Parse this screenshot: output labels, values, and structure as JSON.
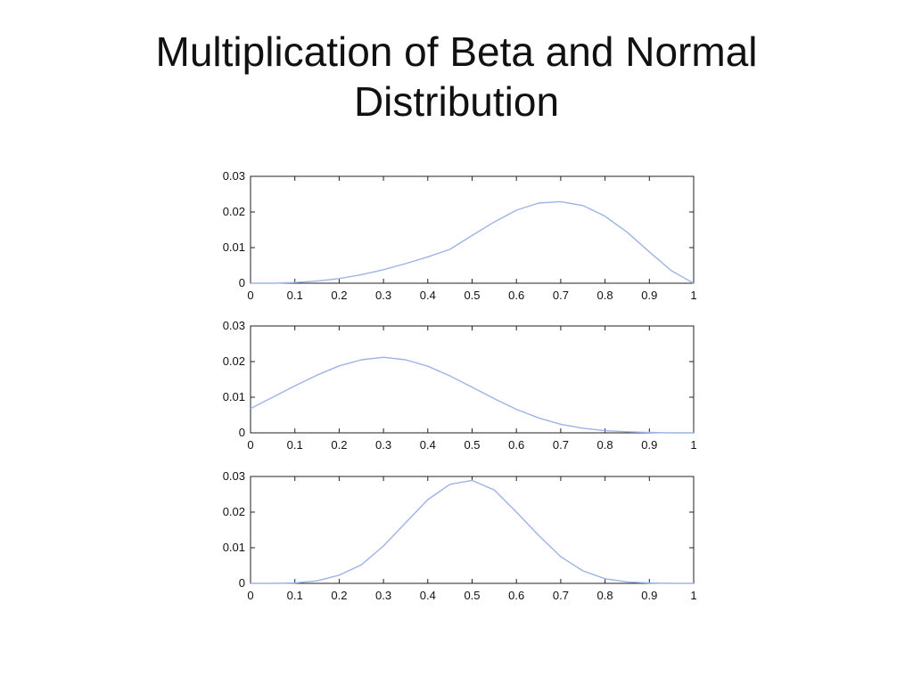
{
  "slide": {
    "title_line1": "Multiplication of Beta and Normal",
    "title_line2": "Distribution"
  },
  "chart_data": [
    {
      "type": "line",
      "title": "",
      "xlabel": "",
      "ylabel": "",
      "xlim": [
        0,
        1
      ],
      "ylim": [
        0,
        0.03
      ],
      "x_ticks": [
        "0",
        "0.1",
        "0.2",
        "0.3",
        "0.4",
        "0.5",
        "0.6",
        "0.7",
        "0.8",
        "0.9",
        "1"
      ],
      "y_ticks": [
        "0",
        "0.01",
        "0.02",
        "0.03"
      ],
      "grid": false,
      "line_color": "#9db4e6",
      "x": [
        0,
        0.05,
        0.1,
        0.15,
        0.2,
        0.25,
        0.3,
        0.35,
        0.4,
        0.45,
        0.5,
        0.55,
        0.6,
        0.65,
        0.7,
        0.75,
        0.8,
        0.85,
        0.9,
        0.95,
        1
      ],
      "y": [
        0,
        0.0,
        0.0002,
        0.0006,
        0.0013,
        0.0024,
        0.0038,
        0.0055,
        0.0074,
        0.0095,
        0.0134,
        0.0172,
        0.0205,
        0.0225,
        0.0229,
        0.0218,
        0.0188,
        0.0143,
        0.0088,
        0.0035,
        0
      ]
    },
    {
      "type": "line",
      "title": "",
      "xlabel": "",
      "ylabel": "",
      "xlim": [
        0,
        1
      ],
      "ylim": [
        0,
        0.03
      ],
      "x_ticks": [
        "0",
        "0.1",
        "0.2",
        "0.3",
        "0.4",
        "0.5",
        "0.6",
        "0.7",
        "0.8",
        "0.9",
        "1"
      ],
      "y_ticks": [
        "0",
        "0.01",
        "0.02",
        "0.03"
      ],
      "grid": false,
      "line_color": "#9db4e6",
      "x": [
        0,
        0.05,
        0.1,
        0.15,
        0.2,
        0.25,
        0.3,
        0.35,
        0.4,
        0.45,
        0.5,
        0.55,
        0.6,
        0.65,
        0.7,
        0.75,
        0.8,
        0.85,
        0.9,
        0.95,
        1
      ],
      "y": [
        0.0068,
        0.01,
        0.0132,
        0.0162,
        0.0188,
        0.0205,
        0.0212,
        0.0205,
        0.0187,
        0.016,
        0.0128,
        0.0096,
        0.0066,
        0.0042,
        0.0024,
        0.0013,
        0.0006,
        0.0003,
        0.0001,
        0.0,
        0
      ]
    },
    {
      "type": "line",
      "title": "",
      "xlabel": "",
      "ylabel": "",
      "xlim": [
        0,
        1
      ],
      "ylim": [
        0,
        0.03
      ],
      "x_ticks": [
        "0",
        "0.1",
        "0.2",
        "0.3",
        "0.4",
        "0.5",
        "0.6",
        "0.7",
        "0.8",
        "0.9",
        "1"
      ],
      "y_ticks": [
        "0",
        "0.01",
        "0.02",
        "0.03"
      ],
      "grid": false,
      "line_color": "#9db4e6",
      "x": [
        0,
        0.05,
        0.1,
        0.15,
        0.2,
        0.25,
        0.3,
        0.35,
        0.4,
        0.45,
        0.5,
        0.55,
        0.6,
        0.65,
        0.7,
        0.75,
        0.8,
        0.85,
        0.9,
        0.95,
        1
      ],
      "y": [
        0,
        0.0,
        0.0001,
        0.0007,
        0.0023,
        0.0052,
        0.0105,
        0.017,
        0.0235,
        0.0278,
        0.0289,
        0.0262,
        0.02,
        0.0135,
        0.0075,
        0.0035,
        0.0013,
        0.0004,
        0.0001,
        0.0,
        0
      ]
    }
  ]
}
